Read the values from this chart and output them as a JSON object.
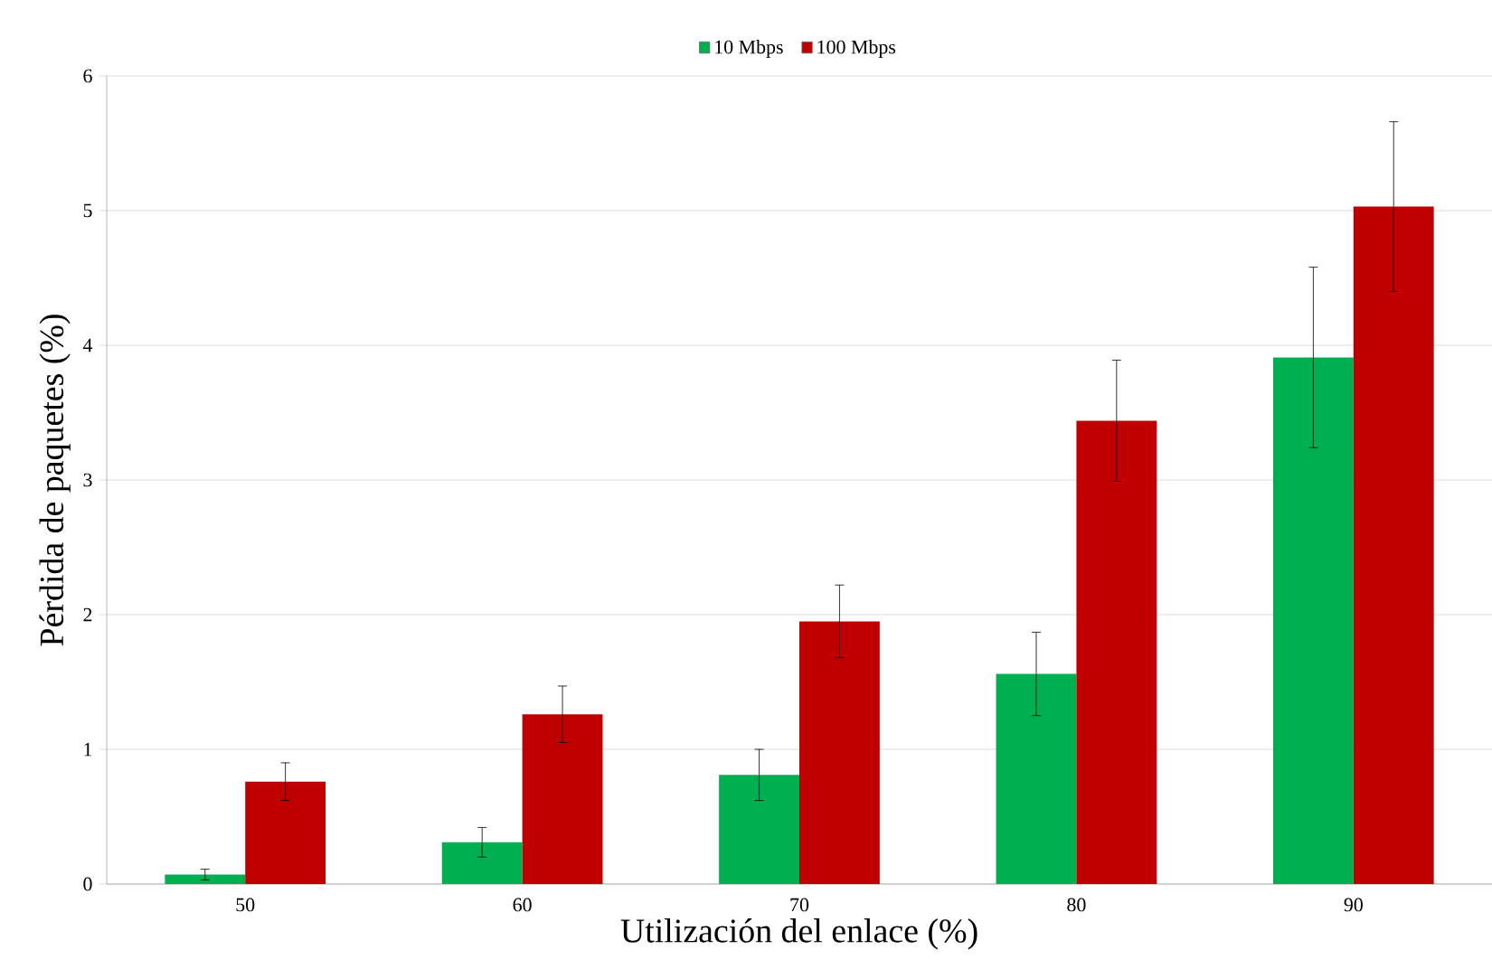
{
  "chart_data": {
    "type": "bar",
    "xlabel": "Utilización del enlace (%)",
    "ylabel": "Pérdida de paquetes (%)",
    "categories": [
      "50",
      "60",
      "70",
      "80",
      "90"
    ],
    "series": [
      {
        "name": "10 Mbps",
        "color": "#00b050",
        "values": [
          0.07,
          0.31,
          0.81,
          1.56,
          3.91
        ],
        "errors": [
          0.04,
          0.11,
          0.19,
          0.31,
          0.67
        ]
      },
      {
        "name": "100 Mbps",
        "color": "#c00000",
        "values": [
          0.76,
          1.26,
          1.95,
          3.44,
          5.03
        ],
        "errors": [
          0.14,
          0.21,
          0.27,
          0.45,
          0.63
        ]
      }
    ],
    "ylim": [
      0,
      6
    ],
    "yticks": [
      0,
      1,
      2,
      3,
      4,
      5,
      6
    ],
    "grid": "y",
    "legend": "top"
  }
}
